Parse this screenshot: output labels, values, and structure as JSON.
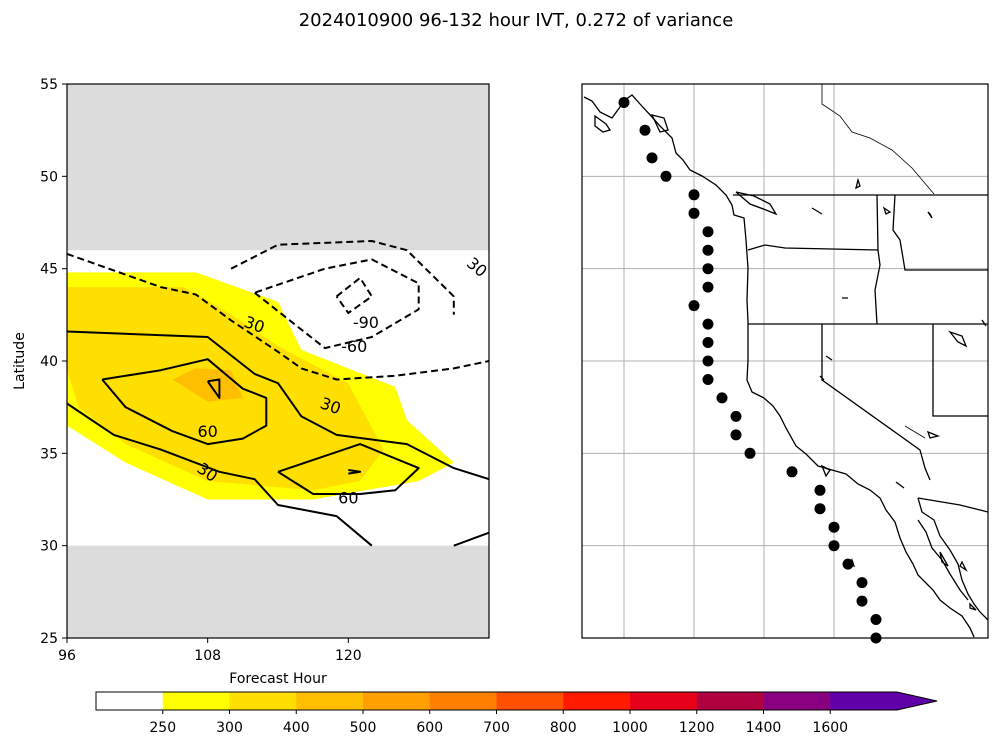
{
  "chart_data": {
    "type": "contour",
    "title": "2024010900 96-132 hour IVT, 0.272 of variance",
    "panels": [
      {
        "name": "hovmoller",
        "xlabel": "Forecast Hour",
        "ylabel": "Latitude",
        "xlim": [
          96,
          132
        ],
        "ylim": [
          25,
          55
        ],
        "xticks": [
          96,
          108,
          120
        ],
        "yticks": [
          25,
          30,
          35,
          40,
          45,
          50,
          55
        ],
        "data_latitude_range": [
          30,
          46
        ],
        "no_data_color": "#dcdcdc",
        "filled_contours": [
          {
            "level": 250,
            "color": "#ffff00",
            "polygon": [
              [
                96,
                44.8
              ],
              [
                107,
                44.8
              ],
              [
                114,
                43.2
              ],
              [
                116,
                40.6
              ],
              [
                120,
                39.6
              ],
              [
                124,
                38.6
              ],
              [
                125,
                36.8
              ],
              [
                129,
                34.5
              ],
              [
                126,
                33.5
              ],
              [
                117,
                32.5
              ],
              [
                108,
                32.5
              ],
              [
                101,
                34.5
              ],
              [
                96,
                36.5
              ]
            ]
          },
          {
            "level": 300,
            "color": "#ffdf00",
            "polygon": [
              [
                96,
                44.0
              ],
              [
                106,
                44.0
              ],
              [
                110,
                42.5
              ],
              [
                114,
                40.8
              ],
              [
                120,
                38.8
              ],
              [
                123,
                35.2
              ],
              [
                121,
                33.5
              ],
              [
                117,
                33.0
              ],
              [
                108,
                33.5
              ],
              [
                101,
                35.5
              ],
              [
                97,
                37.5
              ],
              [
                96,
                39.5
              ]
            ]
          },
          {
            "level": 400,
            "color": "#ffbf00",
            "polygon": [
              [
                105,
                39.0
              ],
              [
                107,
                39.6
              ],
              [
                110,
                39.5
              ],
              [
                111,
                38.0
              ],
              [
                108,
                37.8
              ],
              [
                106,
                38.6
              ]
            ]
          }
        ],
        "contour_lines": [
          {
            "value": 30,
            "style": "solid",
            "points": [
              [
                96,
                41.6
              ],
              [
                108,
                41.3
              ],
              [
                112,
                39.3
              ],
              [
                114,
                38.8
              ],
              [
                116,
                37.0
              ],
              [
                119,
                36.0
              ],
              [
                125,
                35.5
              ],
              [
                129,
                34.2
              ],
              [
                132,
                33.6
              ]
            ]
          },
          {
            "value": 30,
            "style": "solid",
            "points": [
              [
                96,
                37.7
              ],
              [
                100,
                36.0
              ],
              [
                104,
                35.2
              ],
              [
                109,
                34.0
              ],
              [
                112,
                33.6
              ],
              [
                114,
                32.2
              ],
              [
                119,
                31.6
              ],
              [
                122,
                30.0
              ]
            ]
          },
          {
            "value": 30,
            "style": "solid",
            "points": [
              [
                129,
                30.0
              ],
              [
                132,
                30.7
              ]
            ]
          },
          {
            "value": 60,
            "style": "solid",
            "points": [
              [
                99,
                39.0
              ],
              [
                104,
                39.5
              ],
              [
                108,
                40.1
              ],
              [
                111,
                38.5
              ],
              [
                113,
                38.0
              ],
              [
                113,
                36.5
              ],
              [
                111,
                35.8
              ],
              [
                108,
                35.5
              ],
              [
                105,
                36.2
              ],
              [
                101,
                37.5
              ],
              [
                99,
                39.0
              ]
            ]
          },
          {
            "value": 60,
            "style": "solid",
            "points": [
              [
                108,
                38.9
              ],
              [
                109,
                38.0
              ],
              [
                109,
                39.0
              ],
              [
                108,
                38.9
              ]
            ]
          },
          {
            "value": 60,
            "style": "solid",
            "points": [
              [
                114,
                34.0
              ],
              [
                121,
                35.5
              ],
              [
                126,
                34.2
              ],
              [
                124,
                33.0
              ],
              [
                121,
                32.8
              ],
              [
                117,
                32.8
              ],
              [
                114,
                34.0
              ]
            ]
          },
          {
            "value": 60,
            "style": "solid",
            "points": [
              [
                120,
                34.1
              ],
              [
                121,
                34.0
              ],
              [
                120,
                33.9
              ]
            ]
          },
          {
            "value": -30,
            "style": "dashed",
            "points": [
              [
                96,
                45.8
              ],
              [
                104,
                44.0
              ],
              [
                107,
                43.6
              ],
              [
                110,
                42.2
              ],
              [
                114,
                40.5
              ],
              [
                116,
                39.6
              ],
              [
                119,
                39.0
              ],
              [
                124,
                39.2
              ],
              [
                129,
                39.6
              ],
              [
                132,
                40.0
              ]
            ]
          },
          {
            "value": -30,
            "style": "dashed",
            "points": [
              [
                110,
                45.0
              ],
              [
                114,
                46.3
              ],
              [
                122,
                46.5
              ],
              [
                125,
                46.0
              ],
              [
                129,
                43.5
              ],
              [
                129,
                42.5
              ]
            ]
          },
          {
            "value": -60,
            "style": "dashed",
            "points": [
              [
                112,
                43.7
              ],
              [
                116,
                41.7
              ],
              [
                118,
                40.7
              ],
              [
                122,
                41.3
              ],
              [
                126,
                42.8
              ],
              [
                126,
                44.2
              ],
              [
                122,
                45.5
              ],
              [
                118,
                45.0
              ],
              [
                112,
                43.7
              ]
            ]
          },
          {
            "value": -90,
            "style": "dashed",
            "points": [
              [
                119,
                43.5
              ],
              [
                121,
                44.5
              ],
              [
                122,
                43.5
              ],
              [
                120,
                42.6
              ],
              [
                119,
                43.5
              ]
            ]
          }
        ],
        "contour_labels": [
          {
            "text": "30",
            "x": 112,
            "y": 42.0,
            "rotation": 20
          },
          {
            "text": "-90",
            "x": 121.5,
            "y": 42.1,
            "rotation": 0
          },
          {
            "text": "-60",
            "x": 120.5,
            "y": 40.8,
            "rotation": 0
          },
          {
            "text": "30",
            "x": 131,
            "y": 45.1,
            "rotation": 40
          },
          {
            "text": "30",
            "x": 118.5,
            "y": 37.6,
            "rotation": 20
          },
          {
            "text": "60",
            "x": 108,
            "y": 36.2,
            "rotation": 0
          },
          {
            "text": "30",
            "x": 108,
            "y": 34.0,
            "rotation": 35
          },
          {
            "text": "60",
            "x": 120,
            "y": 32.6,
            "rotation": 0
          }
        ]
      },
      {
        "name": "map",
        "lon_range": [
          -137,
          -108
        ],
        "lat_range": [
          25,
          55
        ],
        "gridlines_lon": [
          -134,
          -129,
          -124,
          -119
        ],
        "gridlines_lat": [
          30,
          35,
          40,
          45,
          50
        ],
        "points": [
          [
            -134,
            54
          ],
          [
            -132.5,
            52.5
          ],
          [
            -132,
            51
          ],
          [
            -131,
            50
          ],
          [
            -129,
            49
          ],
          [
            -129,
            48
          ],
          [
            -128,
            47
          ],
          [
            -128,
            46
          ],
          [
            -128,
            45
          ],
          [
            -128,
            44
          ],
          [
            -129,
            43
          ],
          [
            -128,
            42
          ],
          [
            -128,
            41
          ],
          [
            -128,
            40
          ],
          [
            -128,
            39
          ],
          [
            -127,
            38
          ],
          [
            -126,
            37
          ],
          [
            -126,
            36
          ],
          [
            -125,
            35
          ],
          [
            -122,
            34
          ],
          [
            -120,
            33
          ],
          [
            -120,
            32
          ],
          [
            -119,
            31
          ],
          [
            -119,
            30
          ],
          [
            -118,
            29
          ],
          [
            -117,
            28
          ],
          [
            -117,
            27
          ],
          [
            -116,
            26
          ],
          [
            -116,
            25
          ]
        ]
      }
    ],
    "colorbar": {
      "levels": [
        250,
        300,
        400,
        500,
        600,
        700,
        800,
        1000,
        1200,
        1400,
        1600
      ],
      "tick_labels": [
        "250",
        "300",
        "400",
        "500",
        "600",
        "700",
        "800",
        "1000",
        "1200",
        "1400",
        "1600"
      ],
      "colors": [
        "#ffffff",
        "#ffff00",
        "#ffdf00",
        "#ffbf00",
        "#ffa000",
        "#ff8000",
        "#ff5000",
        "#ff1a00",
        "#e6001a",
        "#b00040",
        "#880080",
        "#6000a8"
      ],
      "extend": "max"
    }
  }
}
